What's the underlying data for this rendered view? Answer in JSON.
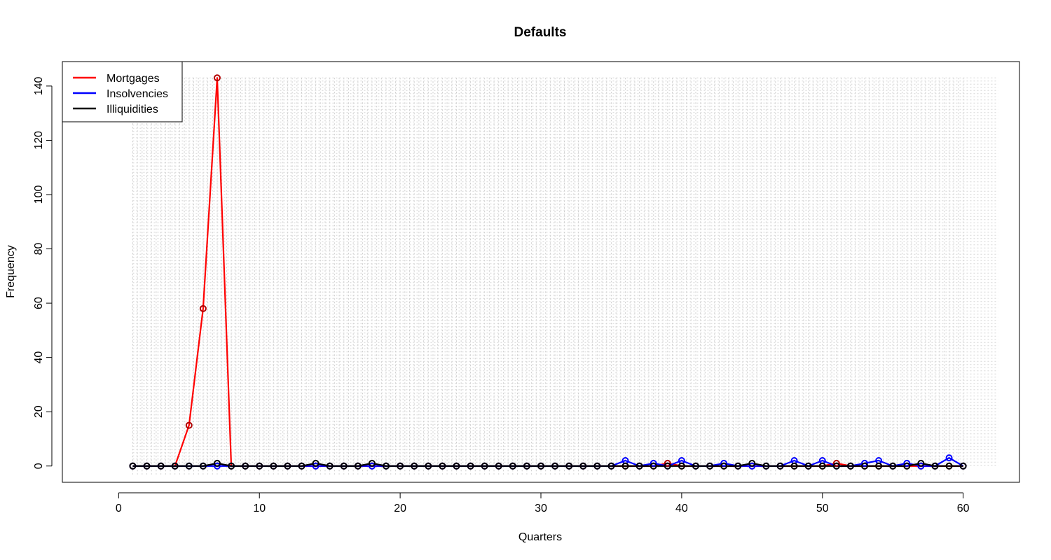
{
  "chart_data": {
    "type": "line",
    "title": "Defaults",
    "xlabel": "Quarters",
    "ylabel": "Frequency",
    "xlim": [
      -4,
      64
    ],
    "ylim": [
      -6,
      149
    ],
    "xticks": [
      0,
      10,
      20,
      30,
      40,
      50,
      60
    ],
    "yticks": [
      0,
      20,
      40,
      60,
      80,
      100,
      120,
      140
    ],
    "grid": true,
    "legend_position": "top-left",
    "x": [
      1,
      2,
      3,
      4,
      5,
      6,
      7,
      8,
      9,
      10,
      11,
      12,
      13,
      14,
      15,
      16,
      17,
      18,
      19,
      20,
      21,
      22,
      23,
      24,
      25,
      26,
      27,
      28,
      29,
      30,
      31,
      32,
      33,
      34,
      35,
      36,
      37,
      38,
      39,
      40,
      41,
      42,
      43,
      44,
      45,
      46,
      47,
      48,
      49,
      50,
      51,
      52,
      53,
      54,
      55,
      56,
      57,
      58,
      59,
      60
    ],
    "series": [
      {
        "name": "Mortgages",
        "color": "#ff0000",
        "values": [
          0,
          0,
          0,
          0,
          15,
          58,
          143,
          0,
          0,
          0,
          0,
          0,
          0,
          0,
          0,
          0,
          0,
          0,
          0,
          0,
          0,
          0,
          0,
          0,
          0,
          0,
          0,
          0,
          0,
          0,
          0,
          0,
          0,
          0,
          0,
          0,
          0,
          0,
          1,
          0,
          0,
          0,
          0,
          0,
          0,
          0,
          0,
          0,
          0,
          0,
          1,
          0,
          0,
          0,
          0,
          0,
          0,
          0,
          0,
          0
        ]
      },
      {
        "name": "Insolvencies",
        "color": "#0000ff",
        "values": [
          0,
          0,
          0,
          0,
          0,
          0,
          0,
          0,
          0,
          0,
          0,
          0,
          0,
          0,
          0,
          0,
          0,
          0,
          0,
          0,
          0,
          0,
          0,
          0,
          0,
          0,
          0,
          0,
          0,
          0,
          0,
          0,
          0,
          0,
          0,
          2,
          0,
          1,
          0,
          2,
          0,
          0,
          1,
          0,
          0,
          0,
          0,
          2,
          0,
          2,
          0,
          0,
          1,
          2,
          0,
          1,
          0,
          0,
          3,
          0
        ]
      },
      {
        "name": "Illiquidities",
        "color": "#000000",
        "values": [
          0,
          0,
          0,
          0,
          0,
          0,
          1,
          0,
          0,
          0,
          0,
          0,
          0,
          1,
          0,
          0,
          0,
          1,
          0,
          0,
          0,
          0,
          0,
          0,
          0,
          0,
          0,
          0,
          0,
          0,
          0,
          0,
          0,
          0,
          0,
          0,
          0,
          0,
          0,
          0,
          0,
          0,
          0,
          0,
          1,
          0,
          0,
          0,
          0,
          0,
          0,
          0,
          0,
          0,
          0,
          0,
          1,
          0,
          0,
          0
        ]
      }
    ]
  }
}
